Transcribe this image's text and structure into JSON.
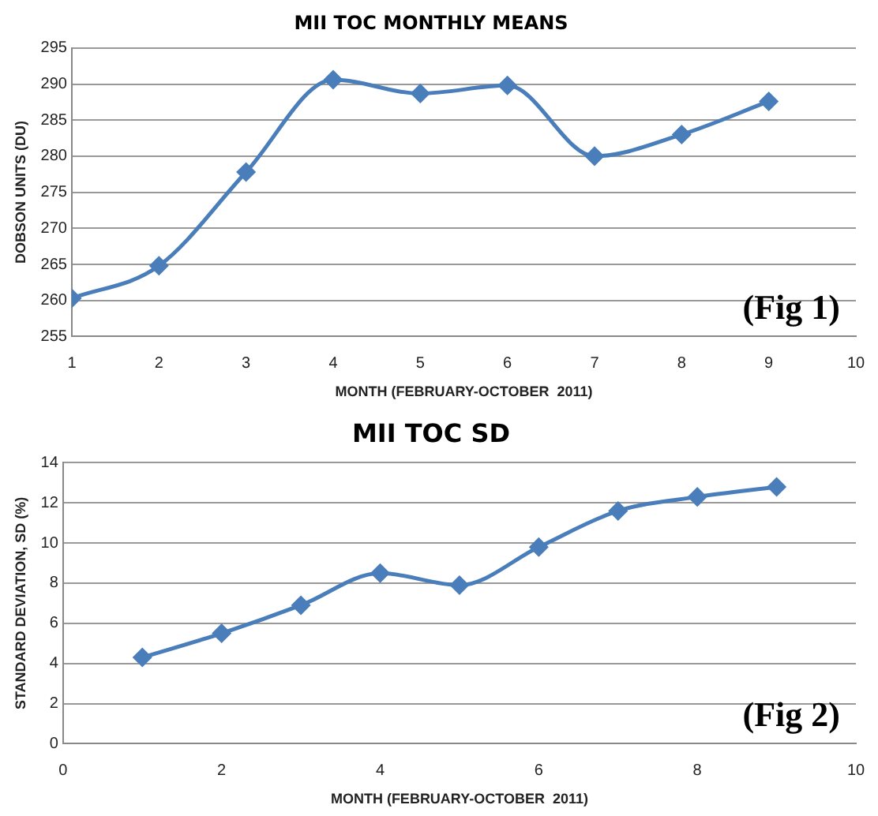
{
  "chart_data": [
    {
      "type": "line",
      "title": "MII TOC MONTHLY MEANS",
      "xlabel": "MONTH (FEBRUARY-OCTOBER  2011)",
      "ylabel": "DOBSON UNITS (DU)",
      "x": [
        1,
        2,
        3,
        4,
        5,
        6,
        7,
        8,
        9
      ],
      "series": [
        {
          "color": "#4a7ebb",
          "values": [
            260.3,
            264.8,
            277.8,
            290.6,
            288.7,
            289.8,
            280.0,
            283.0,
            287.6
          ]
        }
      ],
      "xlim": [
        1,
        10
      ],
      "xticks": [
        1,
        2,
        3,
        4,
        5,
        6,
        7,
        8,
        9,
        10
      ],
      "ylim": [
        255,
        295
      ],
      "yticks": [
        255,
        260,
        265,
        270,
        275,
        280,
        285,
        290,
        295
      ],
      "grid": "y",
      "legend": false,
      "marker": "diamond",
      "line_style": "solid",
      "annotations": [
        "(Fig 1)"
      ]
    },
    {
      "type": "line",
      "title": "MII TOC SD",
      "xlabel": "MONTH (FEBRUARY-OCTOBER  2011)",
      "ylabel": "STANDARD DEVIATION, SD (%)",
      "x": [
        1,
        2,
        3,
        4,
        5,
        6,
        7,
        8,
        9
      ],
      "series": [
        {
          "color": "#4a7ebb",
          "values": [
            4.3,
            5.5,
            6.9,
            8.5,
            7.9,
            9.8,
            11.6,
            12.3,
            12.8
          ]
        }
      ],
      "xlim": [
        0,
        10
      ],
      "xticks": [
        0,
        2,
        4,
        6,
        8,
        10
      ],
      "ylim": [
        0,
        14
      ],
      "yticks": [
        0,
        2,
        4,
        6,
        8,
        10,
        12,
        14
      ],
      "grid": "y",
      "legend": false,
      "marker": "diamond",
      "line_style": "solid",
      "annotations": [
        "(Fig 2)"
      ]
    }
  ]
}
